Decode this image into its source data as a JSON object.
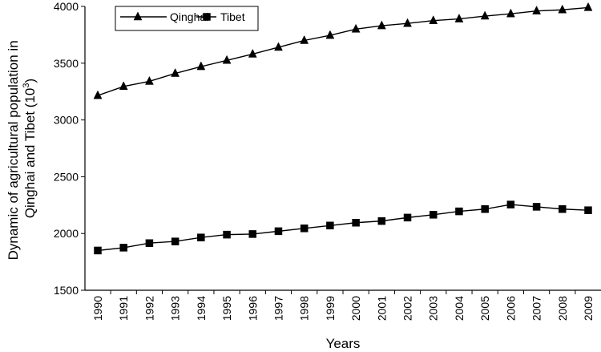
{
  "chart_data": {
    "type": "line",
    "title": "",
    "xlabel": "Years",
    "ylabel": "Dynamic of agricultural population in Qinghai and Tibet (10³)",
    "ylabel_lines": [
      "Dynamic of agricultural population in",
      "Qinghai and Tibet (10",
      "3",
      ")"
    ],
    "x": [
      "1990",
      "1991",
      "1992",
      "1993",
      "1994",
      "1995",
      "1996",
      "1997",
      "1998",
      "1999",
      "2000",
      "2001",
      "2002",
      "2003",
      "2004",
      "2005",
      "2006",
      "2007",
      "2008",
      "2009"
    ],
    "ylim": [
      1500,
      4000
    ],
    "yticks": [
      1500,
      2000,
      2500,
      3000,
      3500,
      4000
    ],
    "grid": false,
    "legend_position": "top-left",
    "series": [
      {
        "name": "Qinghai",
        "marker": "triangle",
        "values": [
          3215,
          3295,
          3340,
          3410,
          3470,
          3525,
          3580,
          3640,
          3700,
          3745,
          3800,
          3830,
          3850,
          3875,
          3890,
          3915,
          3935,
          3960,
          3970,
          3990
        ]
      },
      {
        "name": "Tibet",
        "marker": "square",
        "values": [
          1850,
          1875,
          1915,
          1930,
          1965,
          1990,
          1995,
          2020,
          2045,
          2070,
          2095,
          2110,
          2140,
          2165,
          2195,
          2215,
          2255,
          2235,
          2215,
          2205
        ]
      }
    ]
  }
}
